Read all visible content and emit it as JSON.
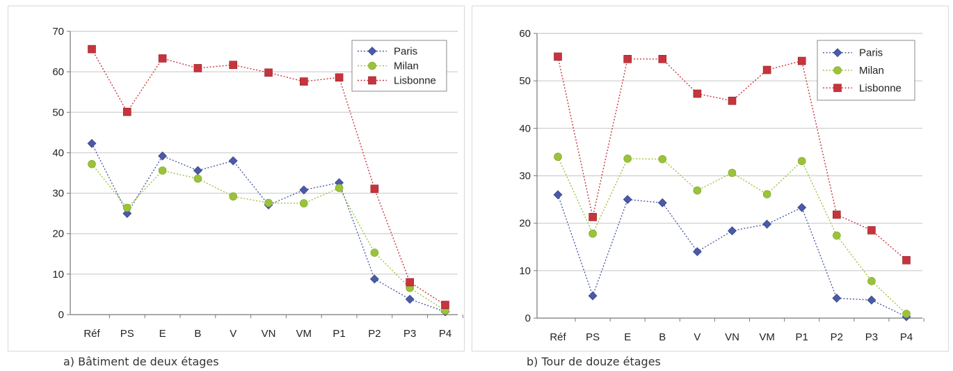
{
  "captions": {
    "a": "a) Bâtiment de deux étages",
    "b": "b) Tour de douze étages"
  },
  "chart_data": [
    {
      "type": "line",
      "categories": [
        "Réf",
        "PS",
        "E",
        "B",
        "V",
        "VN",
        "VM",
        "P1",
        "P2",
        "P3",
        "P4"
      ],
      "ylim": [
        0,
        70
      ],
      "yticks": [
        0,
        10,
        20,
        30,
        40,
        50,
        60,
        70
      ],
      "grid": true,
      "legend_position": "top-right",
      "series": [
        {
          "name": "Paris",
          "color": "#4a5aa8",
          "marker": "diamond",
          "values": [
            42.3,
            25,
            39.2,
            35.6,
            38,
            27.1,
            30.8,
            32.6,
            8.8,
            3.8,
            0.7
          ]
        },
        {
          "name": "Milan",
          "color": "#9bc33a",
          "marker": "circle",
          "values": [
            37.2,
            26.4,
            35.6,
            33.6,
            29.2,
            27.6,
            27.5,
            31.3,
            15.3,
            6.6,
            1
          ]
        },
        {
          "name": "Lisbonne",
          "color": "#c8343c",
          "marker": "square",
          "values": [
            65.6,
            50.1,
            63.3,
            60.9,
            61.7,
            59.8,
            57.6,
            58.6,
            31.1,
            8,
            2.4
          ]
        }
      ]
    },
    {
      "type": "line",
      "categories": [
        "Réf",
        "PS",
        "E",
        "B",
        "V",
        "VN",
        "VM",
        "P1",
        "P2",
        "P3",
        "P4"
      ],
      "ylim": [
        0,
        60
      ],
      "yticks": [
        0,
        10,
        20,
        30,
        40,
        50,
        60
      ],
      "grid": true,
      "legend_position": "top-right",
      "series": [
        {
          "name": "Paris",
          "color": "#4a5aa8",
          "marker": "diamond",
          "values": [
            26,
            4.7,
            25,
            24.3,
            14,
            18.4,
            19.8,
            23.3,
            4.2,
            3.8,
            0.3
          ]
        },
        {
          "name": "Milan",
          "color": "#9bc33a",
          "marker": "circle",
          "values": [
            34,
            17.8,
            33.6,
            33.5,
            26.9,
            30.6,
            26.1,
            33.1,
            17.4,
            7.8,
            0.9
          ]
        },
        {
          "name": "Lisbonne",
          "color": "#c8343c",
          "marker": "square",
          "values": [
            55.1,
            21.3,
            54.6,
            54.6,
            47.3,
            45.8,
            52.3,
            54.2,
            21.8,
            18.5,
            12.2
          ]
        }
      ]
    }
  ]
}
